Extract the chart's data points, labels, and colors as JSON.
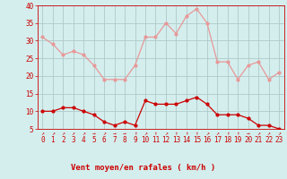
{
  "title": "Vent moyen/en rafales ( km/h )",
  "background_color": "#d4eeee",
  "grid_color": "#b0c8c8",
  "x_labels": [
    "0",
    "1",
    "2",
    "3",
    "4",
    "5",
    "6",
    "7",
    "8",
    "9",
    "10",
    "11",
    "12",
    "13",
    "14",
    "15",
    "16",
    "17",
    "18",
    "19",
    "20",
    "21",
    "22",
    "23"
  ],
  "hours": [
    0,
    1,
    2,
    3,
    4,
    5,
    6,
    7,
    8,
    9,
    10,
    11,
    12,
    13,
    14,
    15,
    16,
    17,
    18,
    19,
    20,
    21,
    22,
    23
  ],
  "rafales": [
    31,
    29,
    26,
    27,
    26,
    23,
    19,
    19,
    19,
    23,
    31,
    31,
    35,
    32,
    37,
    39,
    35,
    24,
    24,
    19,
    23,
    24,
    19,
    21
  ],
  "moyen": [
    10,
    10,
    11,
    11,
    10,
    9,
    7,
    6,
    7,
    6,
    13,
    12,
    12,
    12,
    13,
    14,
    12,
    9,
    9,
    9,
    8,
    6,
    6,
    5
  ],
  "line_color_rafales": "#e89898",
  "line_color_moyen": "#cc0000",
  "ylim": [
    5,
    40
  ],
  "yticks": [
    5,
    10,
    15,
    20,
    25,
    30,
    35,
    40
  ],
  "tick_fontsize": 5.5,
  "xlabel_fontsize": 6.5,
  "arrow_chars": [
    "↗",
    "↗",
    "↗",
    "↗",
    "↗",
    "→",
    "↗",
    "→",
    "→",
    "↑",
    "↗",
    "↑",
    "↗",
    "↑",
    "↑",
    "↑",
    "↗",
    "↗",
    "↑",
    "↑",
    "→",
    "↗",
    "↗",
    "↗"
  ]
}
